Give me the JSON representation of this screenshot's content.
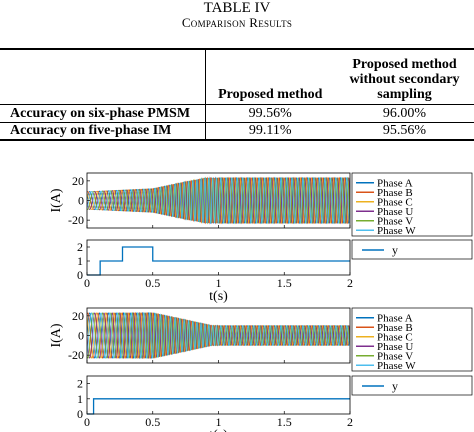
{
  "table": {
    "title": "TABLE IV",
    "subtitle": "Comparison Results",
    "headers": [
      "",
      "Proposed method",
      "Proposed method without secondary sampling"
    ],
    "header_lines": [
      [
        "Proposed method"
      ],
      [
        "Proposed method",
        "without secondary",
        "sampling"
      ]
    ],
    "rows": [
      {
        "label": "Accuracy on six-phase PMSM",
        "values": [
          "99.56%",
          "96.00%"
        ]
      },
      {
        "label": "Accuracy on five-phase IM",
        "values": [
          "99.11%",
          "95.56%"
        ]
      }
    ]
  },
  "colors": {
    "phase_a": "#0072BD",
    "phase_b": "#D95319",
    "phase_c": "#EDB120",
    "phase_u": "#7E2F8E",
    "phase_v": "#77AC30",
    "phase_w": "#4DBEEE",
    "y": "#0072BD"
  },
  "chart_data": [
    {
      "type": "line",
      "ylabel": "I(A)",
      "yticks": [
        "20",
        "0",
        "-20"
      ],
      "ylim": [
        -28,
        28
      ],
      "xlim": [
        0,
        2
      ],
      "legend": [
        "Phase A",
        "Phase B",
        "Phase C",
        "Phase U",
        "Phase V",
        "Phase W"
      ],
      "legend_position": "right",
      "amplitude_profile": {
        "t": [
          0,
          0.5,
          0.9,
          2
        ],
        "amp": [
          9,
          12,
          23,
          23
        ]
      },
      "description_none": ""
    },
    {
      "type": "line",
      "xlabel": "t(s)",
      "xticks": [
        "0",
        "0.5",
        "1",
        "1.5",
        "2"
      ],
      "yticks": [
        "2",
        "1",
        "0"
      ],
      "ylim": [
        0,
        2.5
      ],
      "xlim": [
        0,
        2
      ],
      "legend": [
        "y"
      ],
      "legend_position": "right",
      "x": [
        0,
        0.1,
        0.1,
        0.27,
        0.27,
        0.5,
        0.5,
        2
      ],
      "y": [
        0,
        0,
        1,
        1,
        2,
        2,
        1,
        1
      ]
    },
    {
      "type": "line",
      "ylabel": "I(A)",
      "yticks": [
        "20",
        "0",
        "-20"
      ],
      "ylim": [
        -28,
        28
      ],
      "xlim": [
        0,
        2
      ],
      "legend": [
        "Phase A",
        "Phase B",
        "Phase C",
        "Phase U",
        "Phase V",
        "Phase W"
      ],
      "legend_position": "right",
      "amplitude_profile": {
        "t": [
          0,
          0.5,
          0.95,
          2
        ],
        "amp": [
          23,
          23,
          10,
          10
        ]
      }
    },
    {
      "type": "line",
      "xlabel": "t(s)",
      "xticks": [
        "0",
        "0.5",
        "1",
        "1.5",
        "2"
      ],
      "yticks": [
        "2",
        "1",
        "0"
      ],
      "ylim": [
        0,
        2.5
      ],
      "xlim": [
        0,
        2
      ],
      "legend": [
        "y"
      ],
      "legend_position": "right",
      "x": [
        0,
        0.05,
        0.05,
        2
      ],
      "y": [
        0,
        0,
        1,
        1
      ]
    }
  ]
}
